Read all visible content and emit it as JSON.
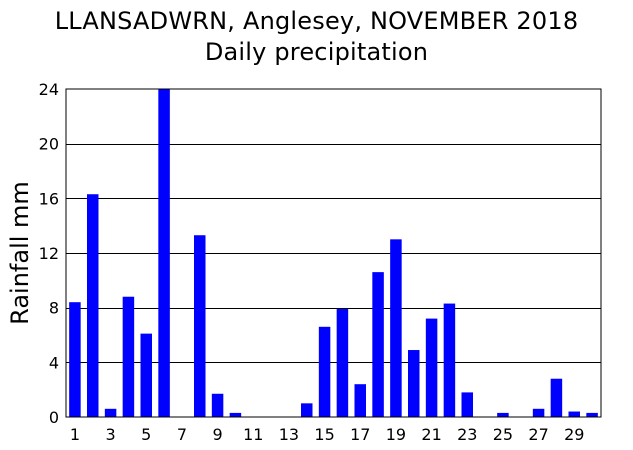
{
  "chart_data": {
    "type": "bar",
    "title": "LLANSADWRN, Anglesey, NOVEMBER 2018",
    "subtitle": "Daily precipitation",
    "xlabel": "",
    "ylabel": "Rainfall mm",
    "ylim": [
      0,
      24
    ],
    "yticks": [
      0,
      4,
      8,
      12,
      16,
      20,
      24
    ],
    "xtick_labels": [
      "1",
      "3",
      "5",
      "7",
      "9",
      "11",
      "13",
      "15",
      "17",
      "19",
      "21",
      "23",
      "25",
      "27",
      "29"
    ],
    "categories": [
      1,
      2,
      3,
      4,
      5,
      6,
      7,
      8,
      9,
      10,
      11,
      12,
      13,
      14,
      15,
      16,
      17,
      18,
      19,
      20,
      21,
      22,
      23,
      24,
      25,
      26,
      27,
      28,
      29,
      30
    ],
    "values": [
      8.4,
      16.3,
      0.6,
      8.8,
      6.1,
      24.0,
      0,
      13.3,
      1.7,
      0.3,
      0,
      0,
      0,
      1.0,
      6.6,
      7.9,
      2.4,
      10.6,
      13.0,
      4.9,
      7.2,
      8.3,
      1.8,
      0,
      0.3,
      0,
      0.6,
      2.8,
      0.4,
      0.3
    ],
    "grid": "horizontal",
    "bar_color": "#0000ff",
    "grid_color": "#000000"
  }
}
